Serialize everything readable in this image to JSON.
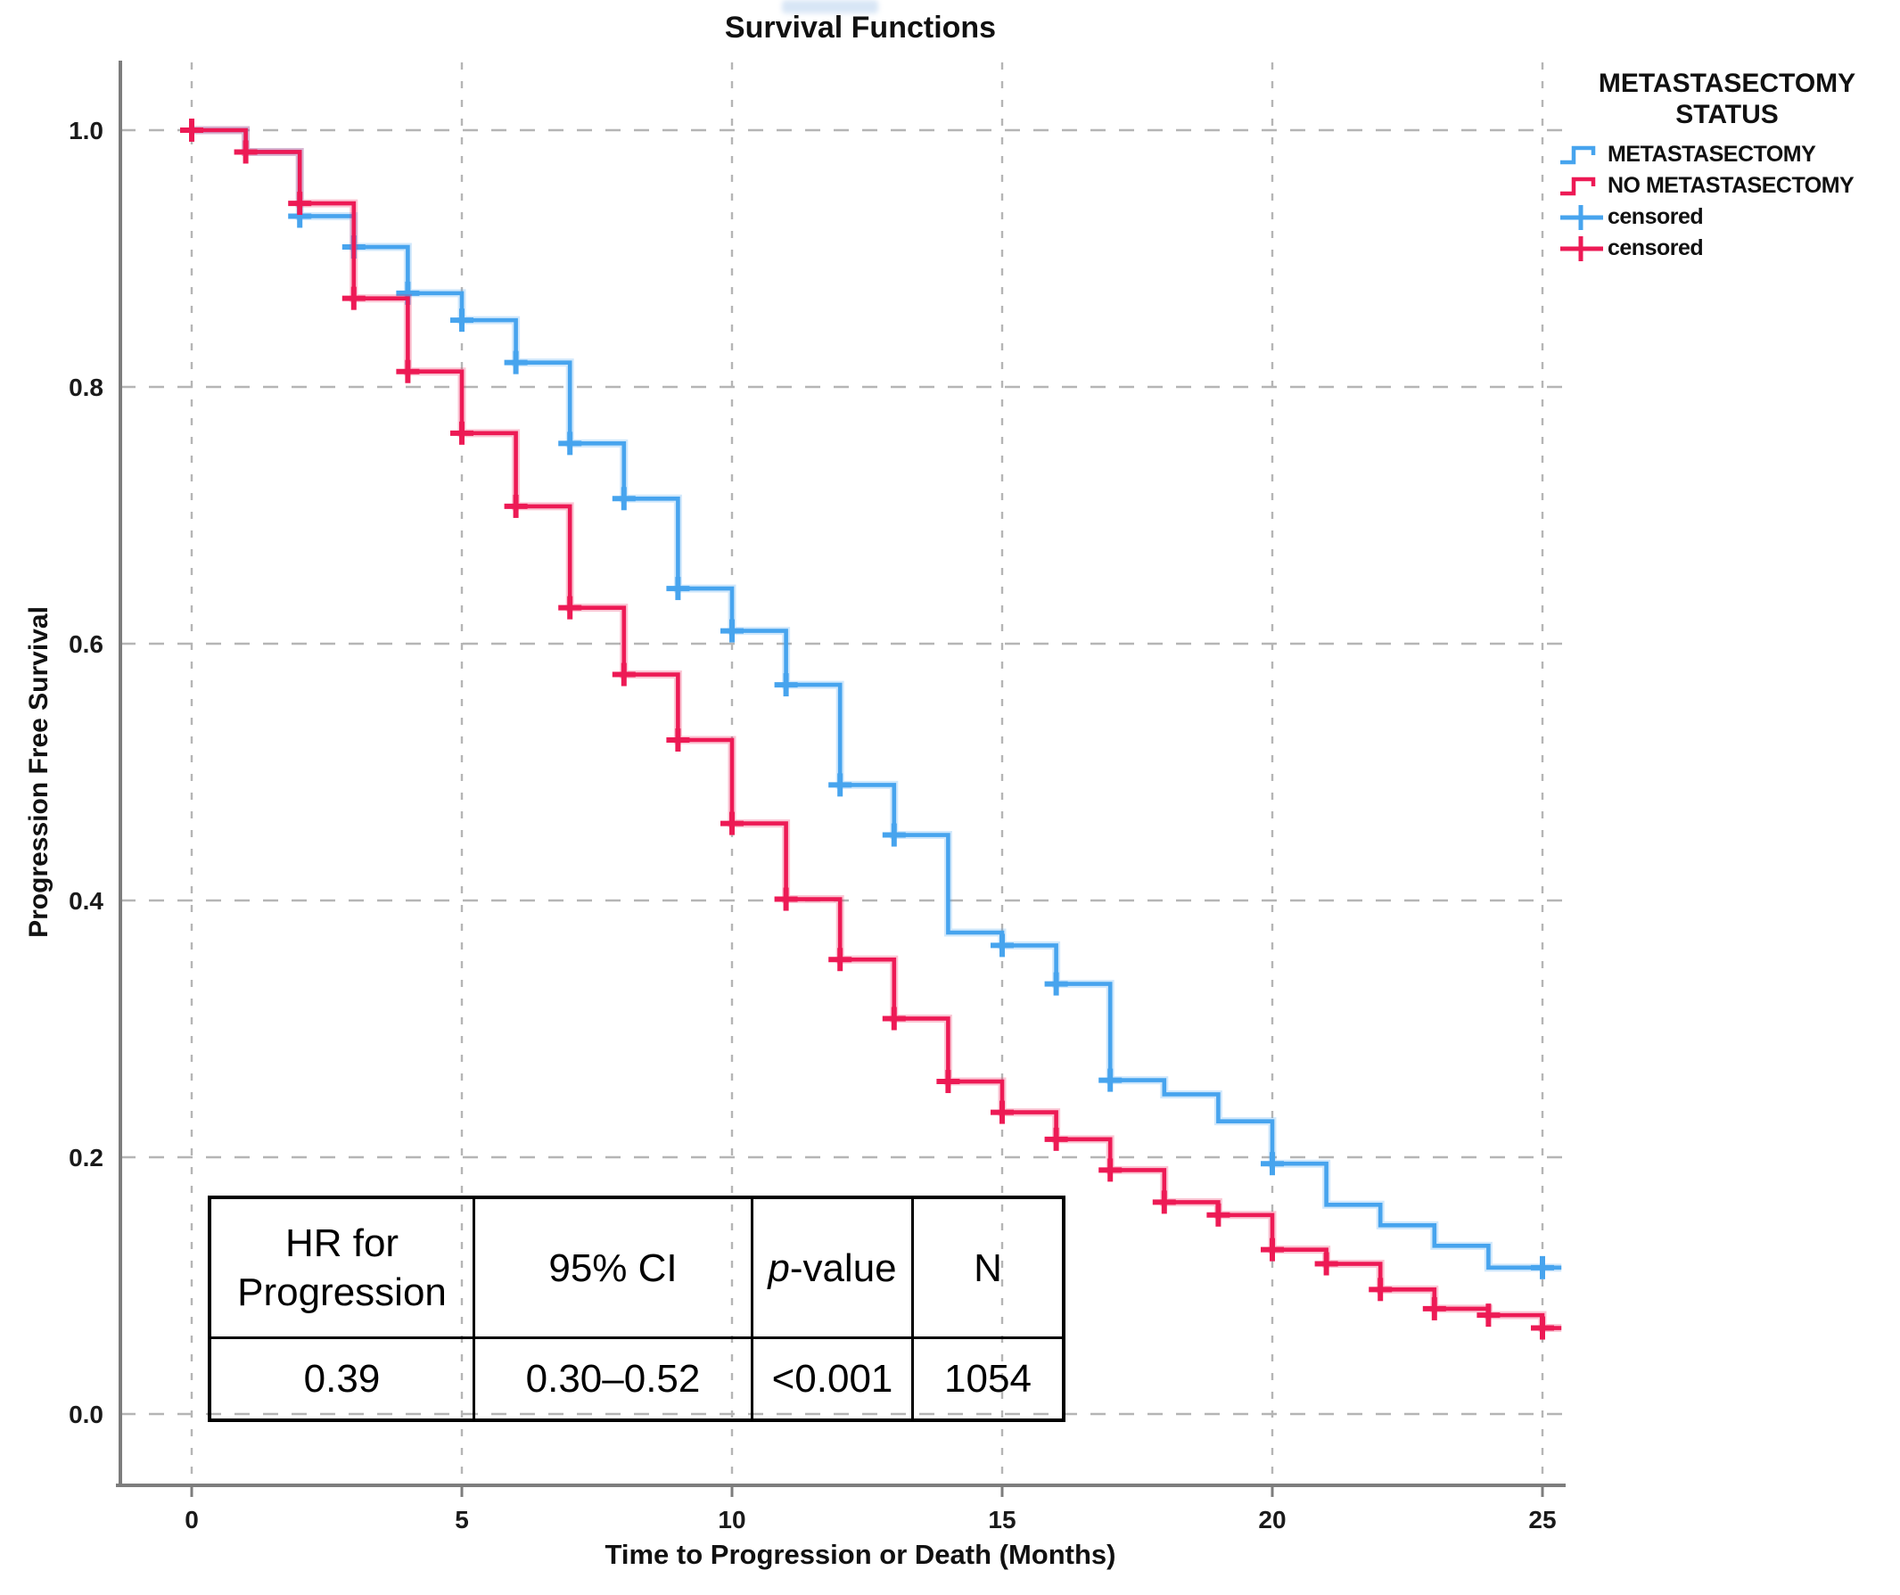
{
  "title": "Survival Functions",
  "axes": {
    "x_label": "Time to Progression or Death (Months)",
    "y_label": "Progression Free Survival"
  },
  "legend": {
    "title_line1": "METASTASECTOMY",
    "title_line2": "STATUS",
    "items": [
      {
        "label": "METASTASECTOMY",
        "type": "step-line",
        "color": "#47A4EE"
      },
      {
        "label": "NO METASTASECTOMY",
        "type": "step-line",
        "color": "#ED1A55"
      },
      {
        "label": "censored",
        "type": "plus",
        "color": "#47A4EE"
      },
      {
        "label": "censored",
        "type": "plus",
        "color": "#ED1A55"
      }
    ]
  },
  "stats_table": {
    "headers": [
      "HR for Progression",
      "95% CI",
      "p-value",
      "N"
    ],
    "p_value_italic": "p",
    "p_value_rest": "-value",
    "row": [
      "0.39",
      "0.30–0.52",
      "<0.001",
      "1054"
    ]
  },
  "chart_data": {
    "type": "line",
    "subtype": "kaplan-meier-step",
    "title": "Survival Functions",
    "xlabel": "Time to Progression or Death (Months)",
    "ylabel": "Progression Free Survival",
    "xlim": [
      0,
      25.4
    ],
    "ylim": [
      0,
      1.0
    ],
    "x_tick_values": [
      0,
      5,
      10,
      15,
      20,
      25
    ],
    "x_tick_labels": [
      "0",
      "5",
      "10",
      "15",
      "20",
      "25"
    ],
    "y_tick_values": [
      0,
      0.2,
      0.4,
      0.6,
      0.8,
      1.0
    ],
    "y_tick_labels": [
      "0.0",
      "0.2",
      "0.4",
      "0.6",
      "0.8",
      "1.0"
    ],
    "grid": true,
    "legend_position": "top-right",
    "x_end": 25.35,
    "series": [
      {
        "name": "METASTASECTOMY",
        "color": "#47A4EE",
        "steps": [
          [
            0,
            1.0
          ],
          [
            1,
            0.983
          ],
          [
            2,
            0.933
          ],
          [
            3,
            0.909
          ],
          [
            4,
            0.873
          ],
          [
            5,
            0.852
          ],
          [
            6,
            0.819
          ],
          [
            7,
            0.756
          ],
          [
            8,
            0.713
          ],
          [
            9,
            0.643
          ],
          [
            10,
            0.61
          ],
          [
            11,
            0.568
          ],
          [
            12,
            0.49
          ],
          [
            13,
            0.451
          ],
          [
            14,
            0.375
          ],
          [
            15,
            0.365
          ],
          [
            16,
            0.335
          ],
          [
            17,
            0.26
          ],
          [
            18,
            0.249
          ],
          [
            19,
            0.228
          ],
          [
            20,
            0.195
          ],
          [
            21,
            0.163
          ],
          [
            22,
            0.147
          ],
          [
            23,
            0.131
          ],
          [
            24,
            0.114
          ]
        ],
        "censored": [
          [
            2,
            0.933
          ],
          [
            3,
            0.909
          ],
          [
            4,
            0.873
          ],
          [
            5,
            0.852
          ],
          [
            6,
            0.819
          ],
          [
            7,
            0.756
          ],
          [
            8,
            0.713
          ],
          [
            9,
            0.643
          ],
          [
            10,
            0.61
          ],
          [
            11,
            0.568
          ],
          [
            12,
            0.49
          ],
          [
            13,
            0.451
          ],
          [
            15,
            0.365
          ],
          [
            16,
            0.335
          ],
          [
            17,
            0.26
          ],
          [
            20,
            0.195
          ],
          [
            25,
            0.114
          ]
        ]
      },
      {
        "name": "NO METASTASECTOMY",
        "color": "#ED1A55",
        "steps": [
          [
            0,
            1.0
          ],
          [
            1,
            0.983
          ],
          [
            2,
            0.943
          ],
          [
            3,
            0.869
          ],
          [
            4,
            0.812
          ],
          [
            5,
            0.764
          ],
          [
            6,
            0.707
          ],
          [
            7,
            0.628
          ],
          [
            8,
            0.576
          ],
          [
            9,
            0.525
          ],
          [
            10,
            0.46
          ],
          [
            11,
            0.401
          ],
          [
            12,
            0.354
          ],
          [
            13,
            0.308
          ],
          [
            14,
            0.259
          ],
          [
            15,
            0.235
          ],
          [
            16,
            0.214
          ],
          [
            17,
            0.19
          ],
          [
            18,
            0.165
          ],
          [
            19,
            0.155
          ],
          [
            20,
            0.128
          ],
          [
            21,
            0.117
          ],
          [
            22,
            0.097
          ],
          [
            23,
            0.082
          ],
          [
            24,
            0.077
          ],
          [
            25,
            0.067
          ]
        ],
        "censored": [
          [
            0,
            1.0
          ],
          [
            1,
            0.983
          ],
          [
            2,
            0.943
          ],
          [
            3,
            0.869
          ],
          [
            4,
            0.812
          ],
          [
            5,
            0.764
          ],
          [
            6,
            0.707
          ],
          [
            7,
            0.628
          ],
          [
            8,
            0.576
          ],
          [
            9,
            0.525
          ],
          [
            10,
            0.46
          ],
          [
            11,
            0.401
          ],
          [
            12,
            0.354
          ],
          [
            13,
            0.308
          ],
          [
            14,
            0.259
          ],
          [
            15,
            0.235
          ],
          [
            16,
            0.214
          ],
          [
            17,
            0.19
          ],
          [
            18,
            0.165
          ],
          [
            19,
            0.155
          ],
          [
            20,
            0.128
          ],
          [
            21,
            0.117
          ],
          [
            22,
            0.097
          ],
          [
            23,
            0.082
          ],
          [
            24,
            0.077
          ],
          [
            25,
            0.067
          ]
        ]
      }
    ]
  }
}
